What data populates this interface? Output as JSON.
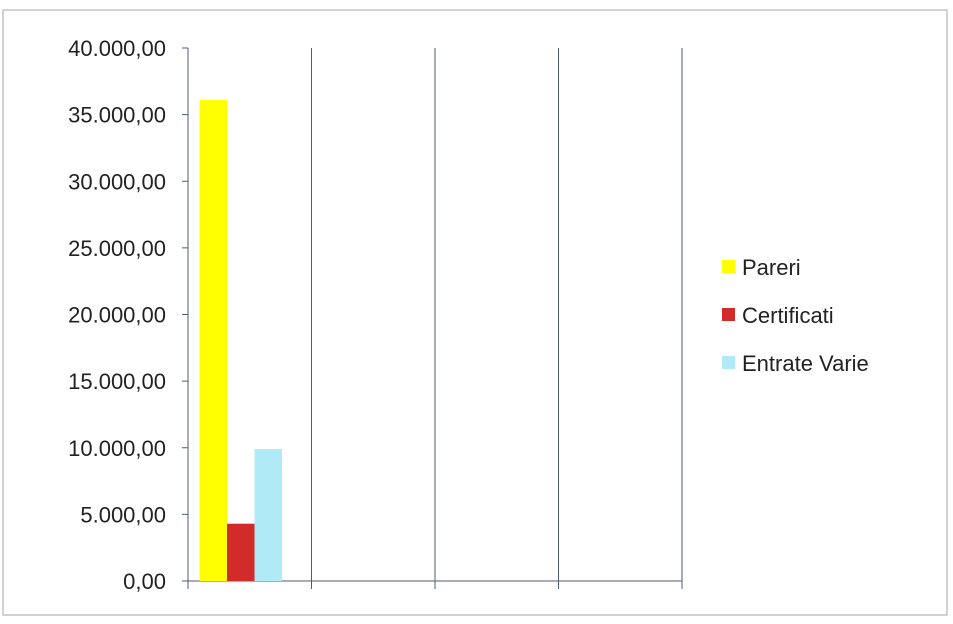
{
  "chart_data": {
    "type": "bar",
    "title": "",
    "xlabel": "",
    "ylabel": "",
    "categories": [
      "",
      "",
      "",
      ""
    ],
    "ylim": [
      0,
      40000
    ],
    "ytick_step": 5000,
    "y_tick_labels": [
      "0,00",
      "5.000,00",
      "10.000,00",
      "15.000,00",
      "20.000,00",
      "25.000,00",
      "30.000,00",
      "35.000,00",
      "40.000,00"
    ],
    "series": [
      {
        "name": "Pareri",
        "color": "#ffff00",
        "values": [
          36100,
          null,
          null,
          null
        ]
      },
      {
        "name": "Certificati",
        "color": "#d22b2b",
        "values": [
          4300,
          null,
          null,
          null
        ]
      },
      {
        "name": "Entrate Varie",
        "color": "#b0eaf6",
        "values": [
          9900,
          null,
          null,
          null
        ]
      }
    ],
    "grid": {
      "horizontal": false,
      "vertical": true,
      "color": "#4f5b7a"
    },
    "legend_position": "right"
  }
}
